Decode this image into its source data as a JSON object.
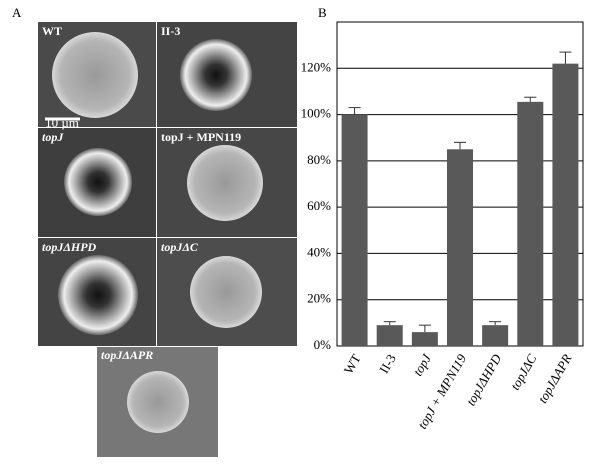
{
  "panel_a": {
    "label": "A",
    "images": [
      "WT",
      "II-3",
      "topJ",
      "topJ + MPN119",
      "topJΔHPD",
      "topJΔC",
      "topJΔAPR"
    ],
    "scale_bar": "10 µm"
  },
  "chart_data": {
    "type": "bar",
    "label": "B",
    "categories": [
      "WT",
      "II-3",
      "topJ",
      "topJ + MPN119",
      "topJΔHPD",
      "topJΔC",
      "topJΔAPR"
    ],
    "values": [
      100,
      9,
      6,
      85,
      9,
      105.5,
      122
    ],
    "errors": [
      3,
      1.5,
      3,
      3,
      1.5,
      2,
      5
    ],
    "color": "#595959",
    "ylim": [
      0,
      140
    ],
    "yticks": [
      {
        "value": 0,
        "label": "0%"
      },
      {
        "value": 20,
        "label": "20%"
      },
      {
        "value": 40,
        "label": "40%"
      },
      {
        "value": 60,
        "label": "60%"
      },
      {
        "value": 80,
        "label": "80%"
      },
      {
        "value": 100,
        "label": "100%"
      },
      {
        "value": 120,
        "label": "120%"
      }
    ],
    "grid": true
  }
}
